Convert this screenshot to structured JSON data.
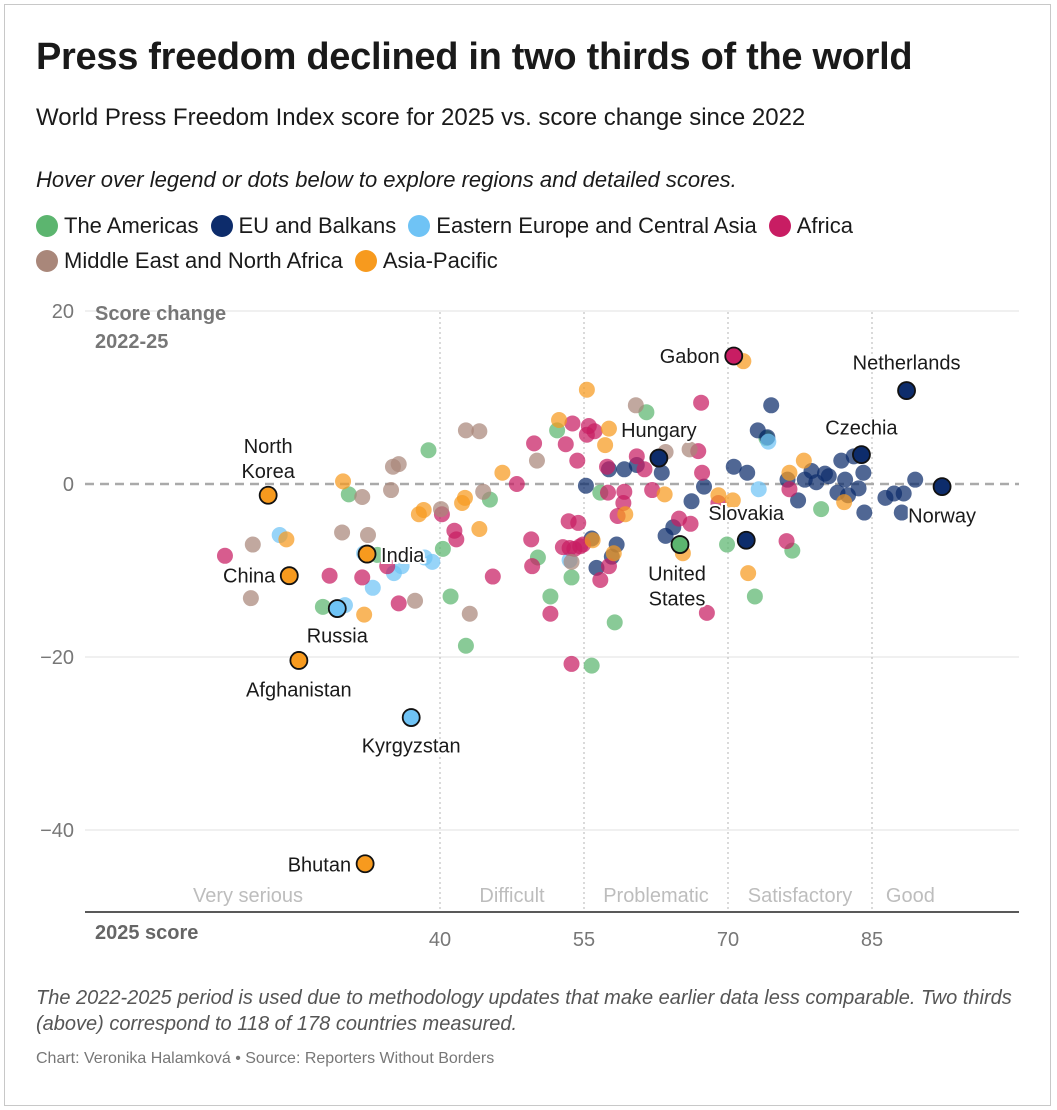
{
  "title": "Press freedom declined in two thirds of the world",
  "subtitle": "World Press Freedom Index score for 2025 vs. score change since 2022",
  "hint": "Hover over legend or dots below to explore regions and detailed scores.",
  "legend": [
    {
      "name": "The Americas",
      "color": "#5cb56f"
    },
    {
      "name": "EU and Balkans",
      "color": "#0d2c6b"
    },
    {
      "name": "Eastern Europe and Central Asia",
      "color": "#6fc3f5"
    },
    {
      "name": "Africa",
      "color": "#c81d63"
    },
    {
      "name": "Middle East and North Africa",
      "color": "#a9877a"
    },
    {
      "name": "Asia-Pacific",
      "color": "#f79a1e"
    }
  ],
  "note": "The 2022-2025 period is used due to methodology updates that make earlier data less comparable. Two thirds (above) correspond to 118 of 178 countries measured.",
  "credit": "Chart: Veronika Halamková • Source: Reporters Without Borders",
  "chart_data": {
    "type": "scatter",
    "xlabel": "2025 score",
    "ylabel": "Score change 2022-25",
    "xlim": [
      13,
      93
    ],
    "ylim": [
      -49,
      20
    ],
    "xticks": [
      40,
      55,
      70,
      85
    ],
    "yticks": [
      20,
      0,
      -20,
      -40
    ],
    "zero_line": true,
    "bands": [
      {
        "label": "Very serious",
        "from": 13,
        "to": 40
      },
      {
        "label": "Difficult",
        "from": 40,
        "to": 55
      },
      {
        "label": "Problematic",
        "from": 55,
        "to": 70
      },
      {
        "label": "Satisfactory",
        "from": 70,
        "to": 85
      },
      {
        "label": "Good",
        "from": 85,
        "to": 93
      }
    ],
    "highlighted": [
      {
        "label": "North Korea",
        "region": "Asia-Pacific",
        "x": 22.1,
        "y": -1.3
      },
      {
        "label": "China",
        "region": "Asia-Pacific",
        "x": 24.3,
        "y": -10.6
      },
      {
        "label": "Afghanistan",
        "region": "Asia-Pacific",
        "x": 25.3,
        "y": -20.4
      },
      {
        "label": "Russia",
        "region": "Eastern Europe and Central Asia",
        "x": 29.3,
        "y": -14.4
      },
      {
        "label": "India",
        "region": "Asia-Pacific",
        "x": 32.4,
        "y": -8.1
      },
      {
        "label": "Kyrgyzstan",
        "region": "Eastern Europe and Central Asia",
        "x": 37.0,
        "y": -27.0
      },
      {
        "label": "Bhutan",
        "region": "Asia-Pacific",
        "x": 32.2,
        "y": -43.9
      },
      {
        "label": "Hungary",
        "region": "EU and Balkans",
        "x": 62.8,
        "y": 3.0
      },
      {
        "label": "United States",
        "region": "The Americas",
        "x": 65.0,
        "y": -7.0
      },
      {
        "label": "Gabon",
        "region": "Africa",
        "x": 70.6,
        "y": 14.8
      },
      {
        "label": "Slovakia",
        "region": "EU and Balkans",
        "x": 71.9,
        "y": -6.5
      },
      {
        "label": "Czechia",
        "region": "EU and Balkans",
        "x": 83.9,
        "y": 3.4
      },
      {
        "label": "Netherlands",
        "region": "EU and Balkans",
        "x": 88.6,
        "y": 10.8
      },
      {
        "label": "Norway",
        "region": "EU and Balkans",
        "x": 92.3,
        "y": -0.3
      }
    ],
    "series": [
      {
        "name": "The Americas",
        "color": "#5cb56f",
        "points": [
          [
            27.8,
            -14.2
          ],
          [
            30.5,
            -1.2
          ],
          [
            33.5,
            -8.2
          ],
          [
            38.8,
            3.9
          ],
          [
            40.3,
            -7.5
          ],
          [
            41.1,
            -13.0
          ],
          [
            42.7,
            -18.7
          ],
          [
            45.2,
            -1.8
          ],
          [
            50.2,
            -8.5
          ],
          [
            51.5,
            -13.0
          ],
          [
            52.2,
            6.2
          ],
          [
            53.7,
            -10.8
          ],
          [
            55.8,
            -21.0
          ],
          [
            56.7,
            -1.0
          ],
          [
            58.2,
            -16.0
          ],
          [
            61.5,
            8.3
          ],
          [
            69.9,
            -7.0
          ],
          [
            72.8,
            -13.0
          ],
          [
            74.0,
            5.3
          ],
          [
            76.7,
            -7.7
          ],
          [
            79.7,
            -2.9
          ]
        ]
      },
      {
        "name": "EU and Balkans",
        "color": "#0d2c6b",
        "points": [
          [
            55.2,
            -0.2
          ],
          [
            55.8,
            -6.3
          ],
          [
            56.3,
            -9.7
          ],
          [
            57.6,
            1.7
          ],
          [
            57.9,
            -8.4
          ],
          [
            58.4,
            -7.0
          ],
          [
            59.2,
            1.7
          ],
          [
            60.5,
            2.2
          ],
          [
            63.1,
            1.3
          ],
          [
            63.5,
            -6.0
          ],
          [
            64.3,
            -5.0
          ],
          [
            66.2,
            -2.0
          ],
          [
            67.5,
            -0.3
          ],
          [
            70.6,
            2.0
          ],
          [
            72.0,
            1.3
          ],
          [
            73.1,
            6.2
          ],
          [
            74.1,
            5.4
          ],
          [
            74.5,
            9.1
          ],
          [
            76.2,
            0.5
          ],
          [
            77.3,
            -1.9
          ],
          [
            78.0,
            0.5
          ],
          [
            78.7,
            1.5
          ],
          [
            79.2,
            0.2
          ],
          [
            80.1,
            1.2
          ],
          [
            80.5,
            0.9
          ],
          [
            81.4,
            -1.0
          ],
          [
            81.8,
            2.7
          ],
          [
            82.2,
            0.5
          ],
          [
            82.5,
            -1.3
          ],
          [
            83.1,
            3.2
          ],
          [
            83.6,
            -0.5
          ],
          [
            84.1,
            1.3
          ],
          [
            84.2,
            -3.3
          ],
          [
            86.4,
            -1.6
          ],
          [
            87.3,
            -1.1
          ],
          [
            88.1,
            -3.3
          ],
          [
            88.3,
            -1.1
          ],
          [
            89.5,
            0.5
          ]
        ]
      },
      {
        "name": "Eastern Europe and Central Asia",
        "color": "#6fc3f5",
        "points": [
          [
            23.3,
            -5.9
          ],
          [
            30.1,
            -14.0
          ],
          [
            32.1,
            -8.0
          ],
          [
            33.0,
            -12.0
          ],
          [
            35.2,
            -10.3
          ],
          [
            36.0,
            -9.5
          ],
          [
            38.4,
            -8.5
          ],
          [
            39.2,
            -9.0
          ],
          [
            53.5,
            -8.8
          ],
          [
            73.2,
            -0.6
          ],
          [
            74.2,
            4.9
          ]
        ]
      },
      {
        "name": "Africa",
        "color": "#c81d63",
        "points": [
          [
            17.6,
            -8.3
          ],
          [
            28.5,
            -10.6
          ],
          [
            31.9,
            -10.8
          ],
          [
            34.5,
            -9.5
          ],
          [
            35.7,
            -13.8
          ],
          [
            40.2,
            -3.5
          ],
          [
            41.5,
            -5.4
          ],
          [
            41.7,
            -6.4
          ],
          [
            45.5,
            -10.7
          ],
          [
            48.0,
            0.0
          ],
          [
            49.5,
            -6.4
          ],
          [
            49.6,
            -9.5
          ],
          [
            49.8,
            4.7
          ],
          [
            51.5,
            -15.0
          ],
          [
            52.8,
            -7.3
          ],
          [
            53.1,
            4.6
          ],
          [
            53.4,
            -4.3
          ],
          [
            53.5,
            -7.4
          ],
          [
            53.7,
            -20.8
          ],
          [
            53.8,
            7.0
          ],
          [
            54.0,
            -7.5
          ],
          [
            54.3,
            2.7
          ],
          [
            54.4,
            -4.5
          ],
          [
            54.6,
            -7.2
          ],
          [
            54.9,
            -7.0
          ],
          [
            55.3,
            5.7
          ],
          [
            55.5,
            6.7
          ],
          [
            56.1,
            6.1
          ],
          [
            56.7,
            -11.1
          ],
          [
            57.4,
            2.0
          ],
          [
            57.5,
            -1.0
          ],
          [
            57.6,
            -9.5
          ],
          [
            58.5,
            -3.7
          ],
          [
            59.1,
            -2.2
          ],
          [
            59.2,
            -0.9
          ],
          [
            60.5,
            3.2
          ],
          [
            61.3,
            1.7
          ],
          [
            62.1,
            -0.7
          ],
          [
            64.9,
            -4.0
          ],
          [
            66.1,
            -4.6
          ],
          [
            66.9,
            3.8
          ],
          [
            67.2,
            9.4
          ],
          [
            67.3,
            1.3
          ],
          [
            67.8,
            -14.9
          ],
          [
            69.0,
            -2.2
          ],
          [
            76.1,
            -6.6
          ],
          [
            76.4,
            -0.6
          ]
        ]
      },
      {
        "name": "Middle East and North Africa",
        "color": "#a9877a",
        "points": [
          [
            20.5,
            -7.0
          ],
          [
            20.3,
            -13.2
          ],
          [
            29.8,
            -5.6
          ],
          [
            31.9,
            -1.5
          ],
          [
            32.5,
            -5.9
          ],
          [
            34.9,
            -0.7
          ],
          [
            35.1,
            2.0
          ],
          [
            35.7,
            2.3
          ],
          [
            37.4,
            -13.5
          ],
          [
            40.1,
            -2.9
          ],
          [
            42.7,
            6.2
          ],
          [
            43.1,
            -15.0
          ],
          [
            44.1,
            6.1
          ],
          [
            44.5,
            -0.9
          ],
          [
            50.1,
            2.7
          ],
          [
            53.7,
            -9.0
          ],
          [
            60.4,
            9.1
          ],
          [
            63.5,
            3.7
          ],
          [
            66.0,
            4.0
          ]
        ]
      },
      {
        "name": "Asia-Pacific",
        "color": "#f79a1e",
        "points": [
          [
            24.0,
            -6.4
          ],
          [
            29.9,
            0.3
          ],
          [
            32.1,
            -15.1
          ],
          [
            37.8,
            -3.5
          ],
          [
            38.3,
            -3.0
          ],
          [
            42.3,
            -2.2
          ],
          [
            42.6,
            -1.6
          ],
          [
            44.1,
            -5.2
          ],
          [
            46.5,
            1.3
          ],
          [
            52.4,
            7.4
          ],
          [
            55.3,
            10.9
          ],
          [
            55.9,
            -6.5
          ],
          [
            57.2,
            4.5
          ],
          [
            57.6,
            6.4
          ],
          [
            58.1,
            -8.0
          ],
          [
            59.3,
            -3.5
          ],
          [
            63.4,
            -1.2
          ],
          [
            65.3,
            -8.0
          ],
          [
            69.0,
            -1.3
          ],
          [
            70.5,
            -1.9
          ],
          [
            71.6,
            14.2
          ],
          [
            72.1,
            -10.3
          ],
          [
            76.4,
            1.3
          ],
          [
            77.9,
            2.7
          ],
          [
            82.1,
            -2.1
          ]
        ]
      }
    ]
  }
}
